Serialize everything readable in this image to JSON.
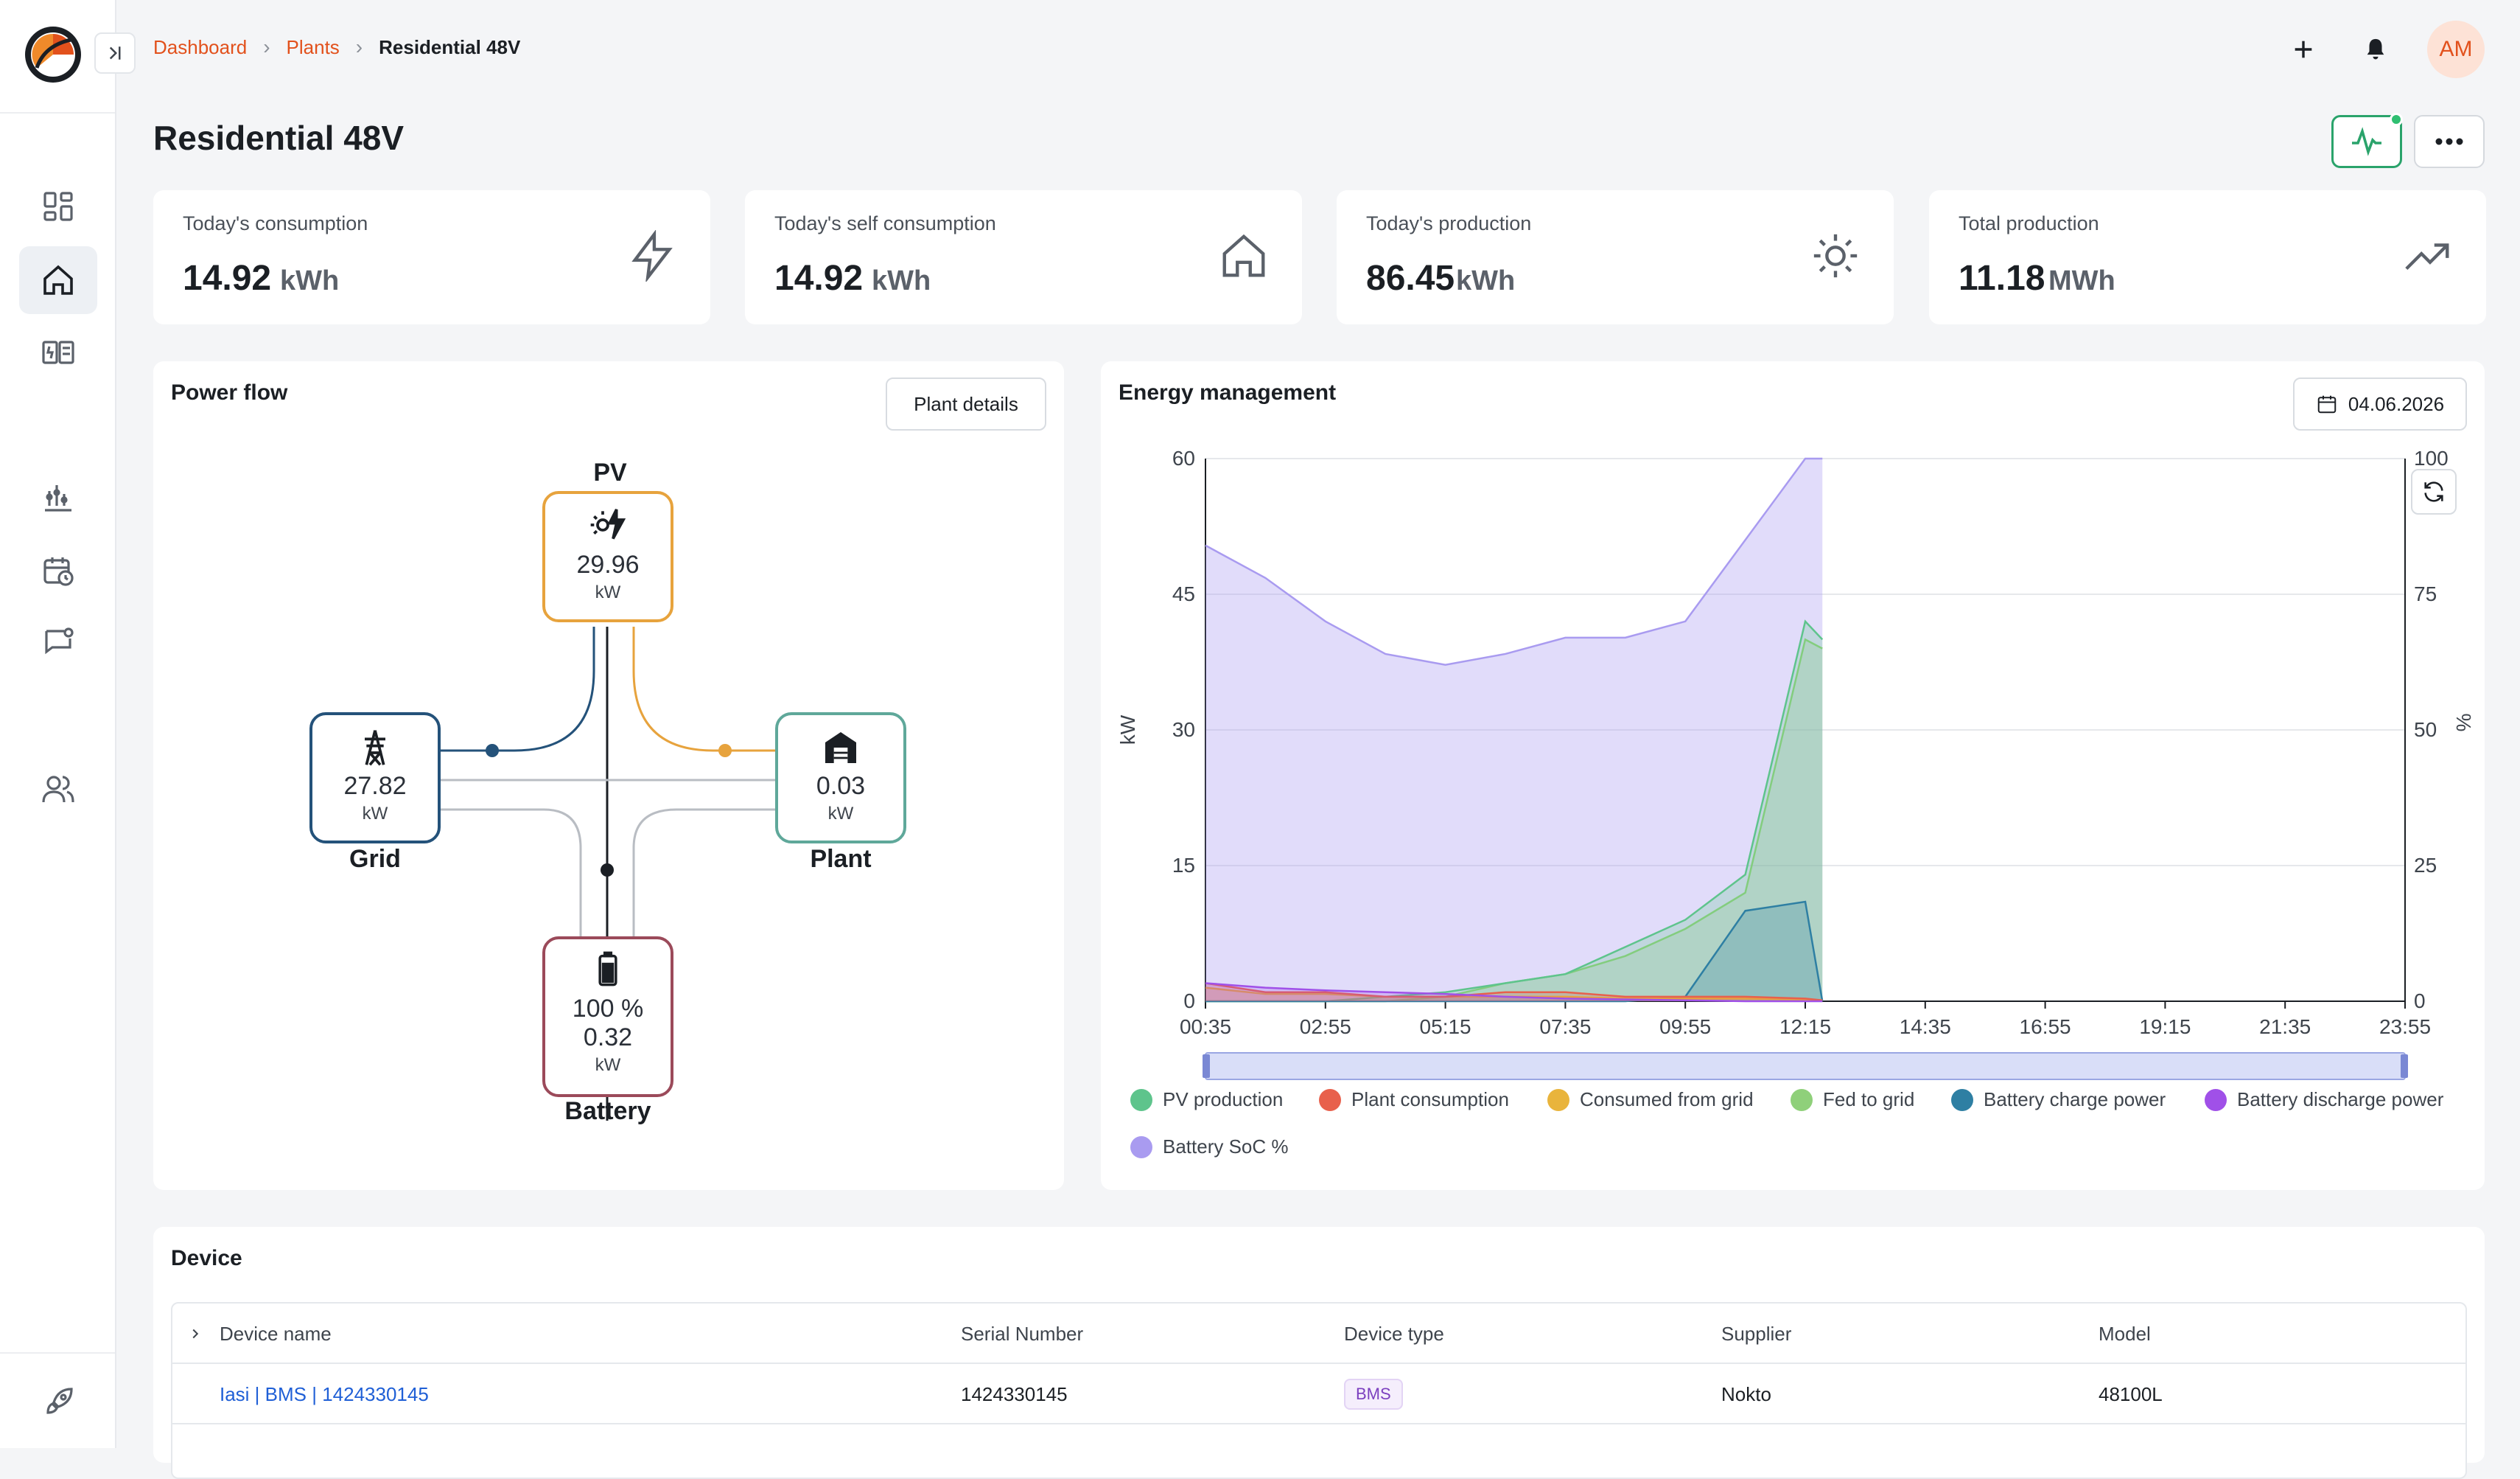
{
  "breadcrumb": {
    "item1": "Dashboard",
    "item2": "Plants",
    "current": "Residential 48V"
  },
  "user": {
    "initials": "AM"
  },
  "page_title": "Residential 48V",
  "kpis": [
    {
      "label": "Today's consumption",
      "value": "14.92",
      "unit": "kWh",
      "icon": "bolt-icon"
    },
    {
      "label": "Today's self consumption",
      "value": "14.92",
      "unit": "kWh",
      "icon": "home-icon"
    },
    {
      "label": "Today's production",
      "value": "86.45",
      "unit": "kWh",
      "icon": "sun-icon"
    },
    {
      "label": "Total production",
      "value": "11.18",
      "unit": "MWh",
      "icon": "trend-up-icon"
    }
  ],
  "power_flow": {
    "title": "Power flow",
    "details_button": "Plant details",
    "pv": {
      "name": "PV",
      "value": "29.96",
      "unit": "kW"
    },
    "grid": {
      "name": "Grid",
      "value": "27.82",
      "unit": "kW"
    },
    "plant": {
      "name": "Plant",
      "value": "0.03",
      "unit": "kW"
    },
    "battery": {
      "name": "Battery",
      "soc": "100 %",
      "value": "0.32",
      "unit": "kW"
    }
  },
  "energy": {
    "title": "Energy management",
    "date": "04.06.2026",
    "left_axis_label": "kW",
    "right_axis_label": "%"
  },
  "chart_data": {
    "type": "area",
    "x": [
      "00:35",
      "01:45",
      "02:55",
      "04:05",
      "05:15",
      "06:25",
      "07:35",
      "08:45",
      "09:55",
      "11:05",
      "12:15",
      "12:35"
    ],
    "x_ticks": [
      "00:35",
      "02:55",
      "05:15",
      "07:35",
      "09:55",
      "12:15",
      "14:35",
      "16:55",
      "19:15",
      "21:35",
      "23:55"
    ],
    "ylim_left": [
      0,
      60
    ],
    "y_ticks_left": [
      "0",
      "15",
      "30",
      "45",
      "60"
    ],
    "ylim_right": [
      0,
      100
    ],
    "y_ticks_right": [
      "0",
      "25",
      "50",
      "75",
      "100"
    ],
    "series": [
      {
        "name": "PV production",
        "color": "#5ec48c",
        "values": [
          0,
          0,
          0,
          0.5,
          1,
          2,
          3,
          6,
          9,
          14,
          42,
          40
        ]
      },
      {
        "name": "Plant consumption",
        "color": "#e8604c",
        "values": [
          2,
          1,
          1,
          0.5,
          0.5,
          1,
          1,
          0.5,
          0.5,
          0.5,
          0.3,
          0.1
        ]
      },
      {
        "name": "Consumed from grid",
        "color": "#e9b43c",
        "values": [
          1.5,
          0.8,
          0.8,
          0.5,
          0.5,
          0.5,
          0.5,
          0.3,
          0.3,
          0.3,
          0.2,
          0.1
        ]
      },
      {
        "name": "Fed to grid",
        "color": "#8fd07a",
        "values": [
          0,
          0,
          0,
          0,
          0.5,
          2,
          3,
          5,
          8,
          12,
          40,
          39
        ]
      },
      {
        "name": "Battery charge power",
        "color": "#2e7fa3",
        "values": [
          0,
          0,
          0,
          0,
          0,
          0,
          0,
          0,
          0.5,
          10,
          11,
          0
        ]
      },
      {
        "name": "Battery discharge power",
        "color": "#a050e8",
        "values": [
          2,
          1.5,
          1.2,
          1,
          0.8,
          0.5,
          0.3,
          0.2,
          0.1,
          0,
          0,
          0
        ]
      },
      {
        "name": "Battery SoC %",
        "color": "#a99bf0",
        "axis": "right",
        "values": [
          84,
          78,
          70,
          64,
          62,
          64,
          67,
          67,
          70,
          85,
          100,
          100
        ]
      }
    ],
    "grid": true,
    "legend_position": "bottom"
  },
  "device": {
    "title": "Device",
    "columns": [
      "Device name",
      "Serial Number",
      "Device type",
      "Supplier",
      "Model"
    ],
    "rows": [
      {
        "name": "Iasi | BMS | 1424330145",
        "serial": "1424330145",
        "type": "BMS",
        "supplier": "Nokto",
        "model": "48100L"
      }
    ]
  }
}
